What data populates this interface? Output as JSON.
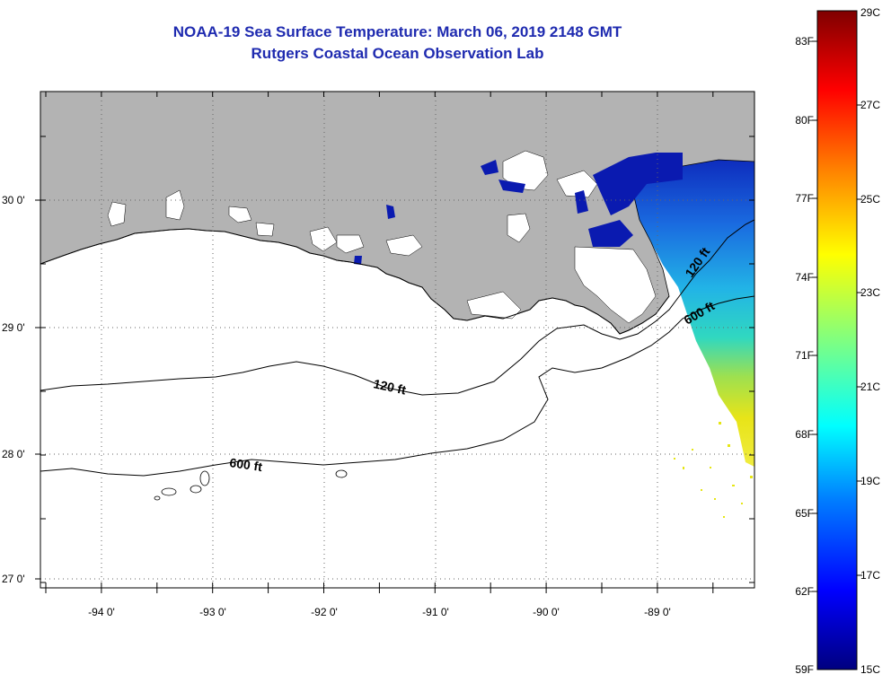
{
  "header": {
    "title": "NOAA-19 Sea Surface Temperature:  March 06, 2019 2148 GMT",
    "subtitle": "Rutgers Coastal Ocean Observation Lab"
  },
  "map": {
    "lat_labels": [
      "30 0'",
      "29 0'",
      "28 0'",
      "27 0'"
    ],
    "lon_labels": [
      "-94 0'",
      "-93 0'",
      "-92 0'",
      "-91 0'",
      "-90 0'",
      "-89 0'"
    ],
    "contour_labels": {
      "west_120": "120 ft",
      "west_600": "600 ft",
      "east_120": "120 ft",
      "east_600": "600 ft"
    },
    "colors": {
      "land": "#b3b3b3",
      "cloud": "#ffffff",
      "sea": "#ffffff",
      "cold": "#0a1ab0",
      "mid": "#00c8dc",
      "warm": "#e6e614"
    }
  },
  "colorbar": {
    "fahrenheit": [
      "83F",
      "80F",
      "77F",
      "74F",
      "71F",
      "68F",
      "65F",
      "62F",
      "59F"
    ],
    "celsius": [
      "29C",
      "27C",
      "25C",
      "23C",
      "21C",
      "19C",
      "17C",
      "15C"
    ]
  }
}
